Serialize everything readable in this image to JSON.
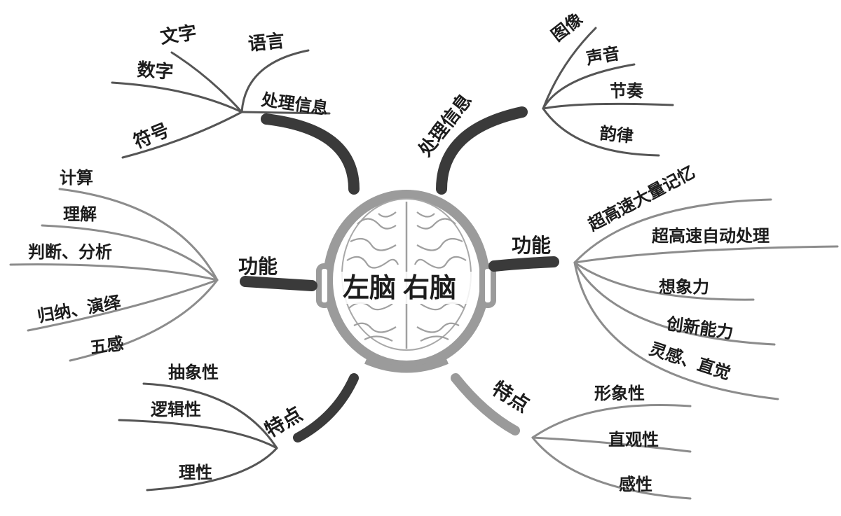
{
  "center": {
    "left": "左脑",
    "right": "右脑"
  },
  "left_brain": {
    "processing": {
      "label": "处理信息",
      "items": [
        "文字",
        "语言",
        "数字",
        "符号"
      ]
    },
    "function": {
      "label": "功能",
      "items": [
        "计算",
        "理解",
        "判断、分析",
        "归纳、演绎",
        "五感"
      ]
    },
    "traits": {
      "label": "特点",
      "items": [
        "抽象性",
        "逻辑性",
        "理性"
      ]
    }
  },
  "right_brain": {
    "processing": {
      "label": "处理信息",
      "items": [
        "图像",
        "声音",
        "节奏",
        "韵律"
      ]
    },
    "function": {
      "label": "功能",
      "items": [
        "超高速大量记忆",
        "超高速自动处理",
        "想象力",
        "创新能力",
        "灵感、直觉"
      ]
    },
    "traits": {
      "label": "特点",
      "items": [
        "形象性",
        "直观性",
        "感性"
      ]
    }
  }
}
